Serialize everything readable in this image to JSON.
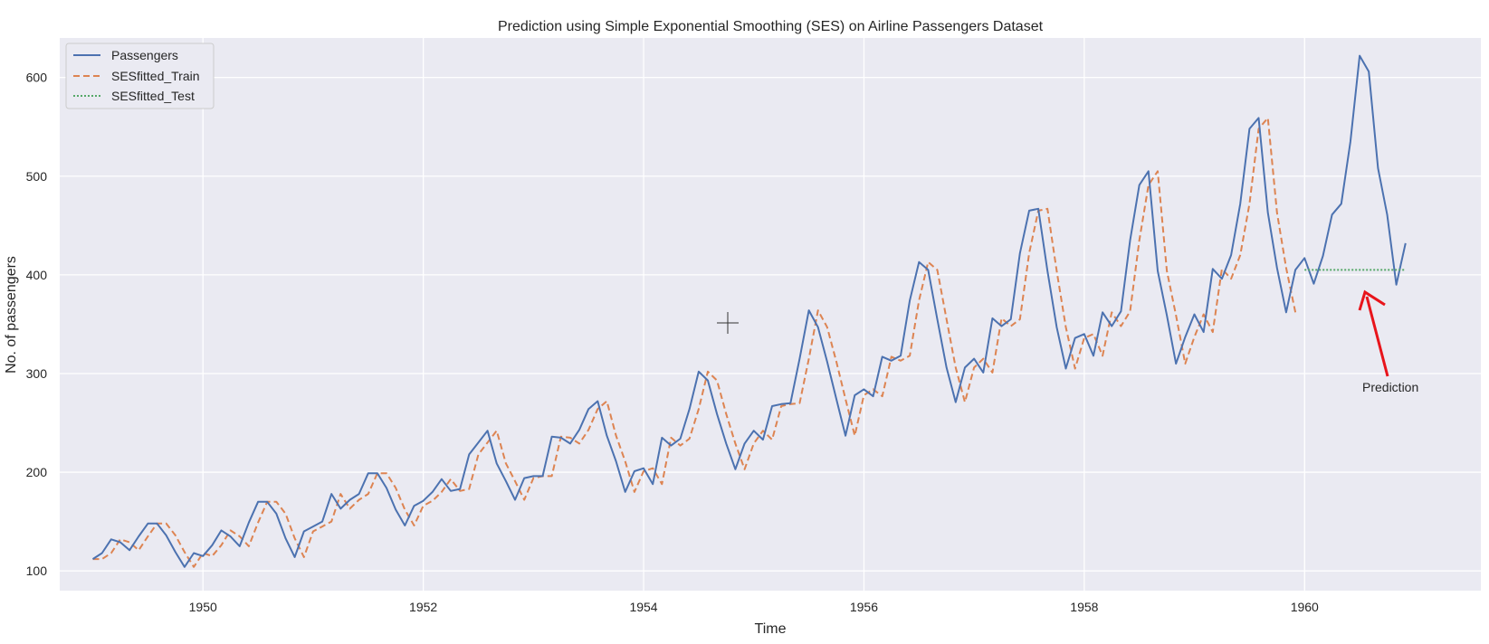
{
  "chart_data": {
    "type": "line",
    "title": "Prediction using Simple Exponential Smoothing (SES) on Airline Passengers Dataset",
    "xlabel": "Time",
    "ylabel": "No. of passengers",
    "xlim": [
      1948.7,
      1961.6
    ],
    "ylim": [
      80,
      640
    ],
    "xticks": [
      1950,
      1952,
      1954,
      1956,
      1958,
      1960
    ],
    "yticks": [
      100,
      200,
      300,
      400,
      500,
      600
    ],
    "grid": true,
    "legend_position": "top-left",
    "start": 1949.0,
    "step": 0.08333,
    "series": [
      {
        "name": "Passengers",
        "style": "solid",
        "color": "#4c72b0",
        "offset": 0,
        "values": [
          112,
          118,
          132,
          129,
          121,
          135,
          148,
          148,
          136,
          119,
          104,
          118,
          115,
          126,
          141,
          135,
          125,
          149,
          170,
          170,
          158,
          133,
          114,
          140,
          145,
          150,
          178,
          163,
          172,
          178,
          199,
          199,
          184,
          162,
          146,
          166,
          171,
          180,
          193,
          181,
          183,
          218,
          230,
          242,
          209,
          191,
          172,
          194,
          196,
          196,
          236,
          235,
          229,
          243,
          264,
          272,
          237,
          211,
          180,
          201,
          204,
          188,
          235,
          227,
          234,
          264,
          302,
          293,
          259,
          229,
          203,
          229,
          242,
          233,
          267,
          269,
          270,
          315,
          364,
          347,
          312,
          274,
          237,
          278,
          284,
          277,
          317,
          313,
          318,
          374,
          413,
          405,
          355,
          306,
          271,
          306,
          315,
          301,
          356,
          348,
          355,
          422,
          465,
          467,
          404,
          347,
          305,
          336,
          340,
          318,
          362,
          348,
          363,
          435,
          491,
          505,
          404,
          359,
          310,
          337,
          360,
          342,
          406,
          396,
          420,
          472,
          548,
          559,
          463,
          407,
          362,
          405,
          417,
          391,
          419,
          461,
          472,
          535,
          622,
          606,
          508,
          461,
          390,
          432
        ]
      },
      {
        "name": "SESfitted_Train",
        "style": "dashed",
        "color": "#dd8452",
        "offset": 0,
        "values": [
          112,
          112,
          118,
          132,
          129,
          121,
          135,
          148,
          148,
          136,
          119,
          104,
          118,
          115,
          126,
          141,
          135,
          125,
          149,
          170,
          170,
          158,
          133,
          114,
          140,
          145,
          150,
          178,
          163,
          172,
          178,
          199,
          199,
          184,
          162,
          146,
          166,
          171,
          180,
          193,
          181,
          183,
          218,
          230,
          242,
          209,
          191,
          172,
          194,
          196,
          196,
          236,
          235,
          229,
          243,
          264,
          272,
          237,
          211,
          180,
          201,
          204,
          188,
          235,
          227,
          234,
          264,
          302,
          293,
          259,
          229,
          203,
          229,
          242,
          233,
          267,
          269,
          270,
          315,
          364,
          347,
          312,
          274,
          237,
          278,
          284,
          277,
          317,
          313,
          318,
          374,
          413,
          405,
          355,
          306,
          271,
          306,
          315,
          301,
          356,
          348,
          355,
          422,
          465,
          467,
          404,
          347,
          305,
          336,
          340,
          318,
          362,
          348,
          363,
          435,
          491,
          505,
          404,
          359,
          310,
          337,
          360,
          342,
          406,
          396,
          420,
          472,
          548,
          559,
          463,
          407,
          362
        ]
      },
      {
        "name": "SESfitted_Test",
        "style": "dotted",
        "color": "#55a868",
        "offset": 132,
        "values": [
          405,
          405,
          405,
          405,
          405,
          405,
          405,
          405,
          405,
          405,
          405,
          405
        ]
      }
    ],
    "annotations": [
      {
        "text": "Prediction",
        "x": 1960.5,
        "y": 288,
        "arrow_to": [
          1960.45,
          382
        ],
        "color": "#e8141b"
      }
    ]
  },
  "colors": {
    "background": "#eaeaf2",
    "grid": "#ffffff",
    "arrow": "#e8141b"
  }
}
